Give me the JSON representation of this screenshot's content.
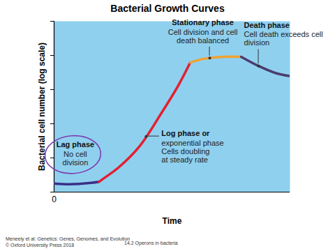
{
  "chart_data": {
    "type": "line",
    "title": "Bacterial Growth Curves",
    "x_label": "Time",
    "y_label": "Bacterial cell number (log scale)",
    "xlim": [
      0,
      10
    ],
    "ylim": [
      0,
      10
    ],
    "xticks": [
      0
    ],
    "yticks": [
      0,
      2,
      4,
      6,
      8,
      10
    ],
    "tick_labels": "x",
    "grid": false,
    "series": [
      {
        "color": "#3b2f86",
        "x": [
          0,
          0.68,
          1.57,
          1.9
        ],
        "values": [
          0.5,
          0.46,
          0.54,
          0.6
        ]
      },
      {
        "color": "#e3202f",
        "x": [
          1.9,
          2.01,
          2.75,
          3.64,
          4.53,
          5.27,
          5.77
        ],
        "values": [
          0.6,
          0.71,
          1.46,
          2.71,
          4.58,
          6.25,
          7.58
        ]
      },
      {
        "color": "#f0a232",
        "x": [
          5.77,
          6.3,
          7.19,
          7.93
        ],
        "values": [
          7.58,
          7.79,
          7.92,
          7.92
        ]
      },
      {
        "color": "#4c3d6e",
        "x": [
          7.93,
          8.67,
          9.41,
          10
        ],
        "values": [
          7.92,
          7.38,
          6.96,
          6.79
        ]
      }
    ],
    "annotations": [
      {
        "title": "Lag phase",
        "text": [
          "No cell",
          "division"
        ],
        "x": 0.9,
        "y": 0.5
      },
      {
        "title": "Log phase or",
        "text": [
          "exponential phase",
          "Cells doubling",
          "at steady rate"
        ],
        "x": 3.9,
        "y": 3.26
      },
      {
        "title": "Stationary phase",
        "text": [
          "Cell division and cell",
          "death balanced"
        ],
        "x": 6.6,
        "y": 7.85
      },
      {
        "title": "Death phase",
        "text": [
          "Cell death exceeds cell",
          "division"
        ],
        "x": 8.67,
        "y": 7.38
      }
    ],
    "source": [
      "Meneely et al: Genetics: Genes, Genomes, and Evolution",
      "© Oxford University Press 2018"
    ],
    "footer": "14.2 Operons in bacteria"
  }
}
